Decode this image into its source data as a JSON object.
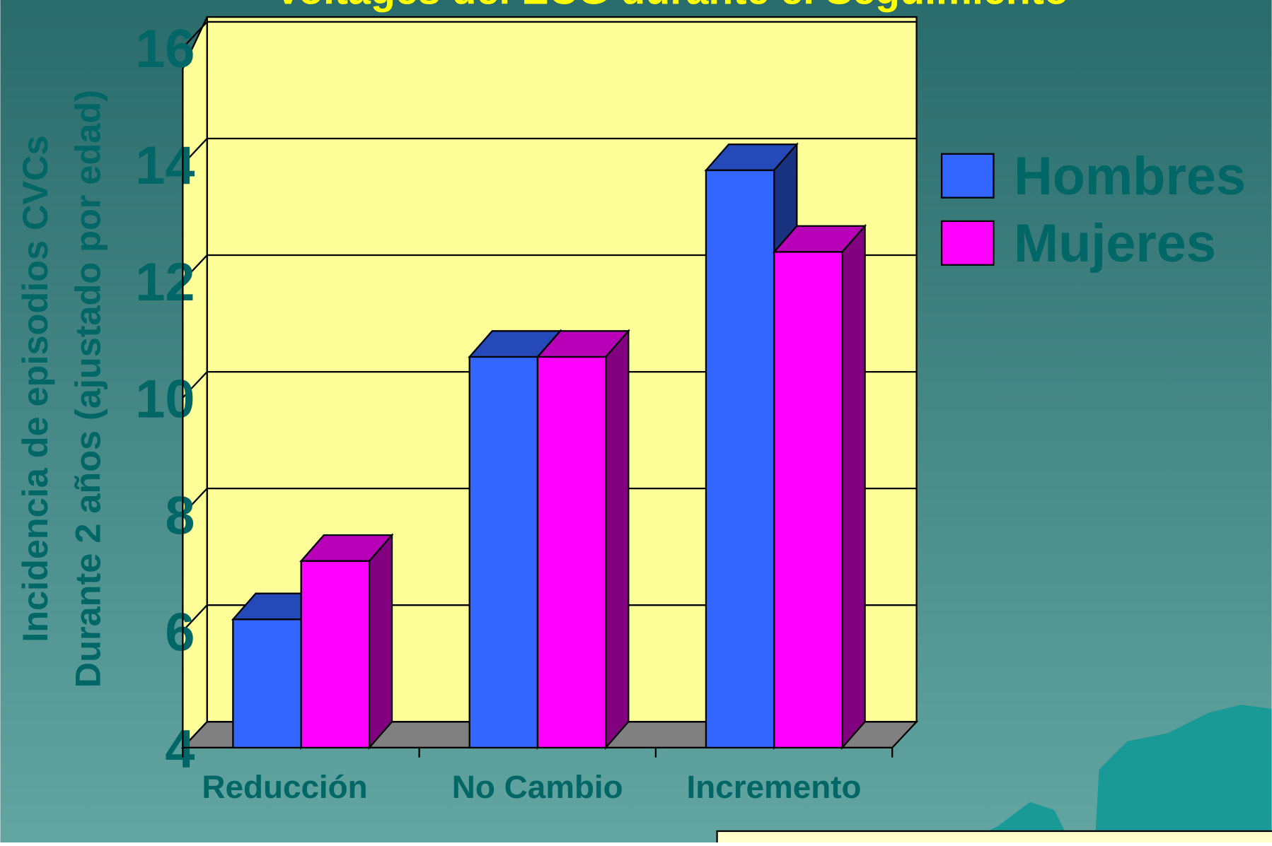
{
  "chart_data": {
    "type": "bar3d",
    "title": "Voltages del ECG durante el Seguimiento",
    "y_label_lines": [
      "Incidencia de episodios CVCs",
      "Durante 2 años (ajustado por edad)"
    ],
    "categories": [
      "Reducción",
      "No Cambio",
      "Incremento"
    ],
    "series": [
      {
        "name": "Hombres",
        "color": "#3366ff",
        "values": [
          6.2,
          10.7,
          13.9
        ]
      },
      {
        "name": "Mujeres",
        "color": "#ff00ff",
        "values": [
          7.2,
          10.7,
          12.5
        ]
      }
    ],
    "ylim": [
      4,
      16
    ],
    "yticks": [
      4,
      6,
      8,
      10,
      12,
      14,
      16
    ],
    "grid": true,
    "legend": "right"
  }
}
